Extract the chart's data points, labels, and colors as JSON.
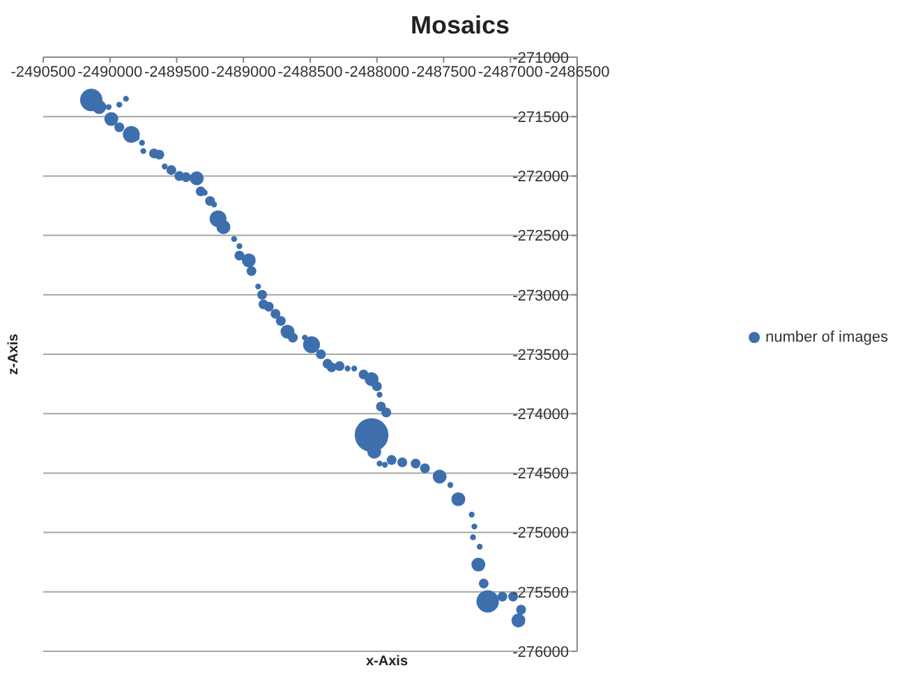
{
  "chart_data": {
    "type": "bubble",
    "title": "Mosaics",
    "xlabel": "x-Axis",
    "ylabel": "z-Axis",
    "xlim": [
      -2490500,
      -2486500
    ],
    "xticks": [
      -2490500,
      -2490000,
      -2489500,
      -2489000,
      -2488500,
      -2488000,
      -2487500,
      -2487000,
      -2486500
    ],
    "ylim": [
      -276000,
      -271000
    ],
    "yticks": [
      -276000,
      -275500,
      -275000,
      -274500,
      -274000,
      -273500,
      -273000,
      -272500,
      -272000,
      -271500,
      -271000
    ],
    "grid": "y",
    "legend": "right",
    "series": [
      {
        "name": "number of images",
        "color": "#3d6fad",
        "x": [
          -2490140,
          -2490080,
          -2490010,
          -2489930,
          -2489880,
          -2489990,
          -2489930,
          -2489840,
          -2489800,
          -2489760,
          -2489750,
          -2489670,
          -2489630,
          -2489590,
          -2489540,
          -2489480,
          -2489430,
          -2489350,
          -2489320,
          -2489290,
          -2489250,
          -2489220,
          -2489190,
          -2489150,
          -2489070,
          -2489030,
          -2489030,
          -2488960,
          -2488940,
          -2488890,
          -2488860,
          -2488850,
          -2488810,
          -2488760,
          -2488720,
          -2488670,
          -2488630,
          -2488540,
          -2488490,
          -2488420,
          -2488370,
          -2488340,
          -2488280,
          -2488220,
          -2488170,
          -2488100,
          -2488040,
          -2488000,
          -2487980,
          -2487970,
          -2487930,
          -2488040,
          -2488020,
          -2487980,
          -2487940,
          -2487890,
          -2487810,
          -2487710,
          -2487640,
          -2487530,
          -2487450,
          -2487390,
          -2487290,
          -2487270,
          -2487280,
          -2487230,
          -2487240,
          -2487200,
          -2487170,
          -2487060,
          -2486980,
          -2486920,
          -2486940
        ],
        "values": [
          -271360,
          -271420,
          -271420,
          -271400,
          -271350,
          -271520,
          -271590,
          -271650,
          -271680,
          -271720,
          -271790,
          -271810,
          -271820,
          -271920,
          -271950,
          -272000,
          -272010,
          -272020,
          -272130,
          -272140,
          -272210,
          -272240,
          -272360,
          -272430,
          -272530,
          -272590,
          -272670,
          -272710,
          -272800,
          -272930,
          -273000,
          -273080,
          -273100,
          -273160,
          -273220,
          -273310,
          -273360,
          -273360,
          -273420,
          -273500,
          -273580,
          -273610,
          -273600,
          -273620,
          -273620,
          -273670,
          -273710,
          -273770,
          -273840,
          -273940,
          -273990,
          -274180,
          -274320,
          -274420,
          -274430,
          -274390,
          -274410,
          -274420,
          -274460,
          -274530,
          -274600,
          -274720,
          -274850,
          -274950,
          -275040,
          -275120,
          -275270,
          -275430,
          -275580,
          -275540,
          -275540,
          -275650,
          -275740
        ],
        "sizes": [
          0.44,
          0.17,
          0.03,
          0.03,
          0.03,
          0.17,
          0.085,
          0.25,
          0.03,
          0.03,
          0.03,
          0.085,
          0.085,
          0.03,
          0.085,
          0.085,
          0.085,
          0.17,
          0.085,
          0.03,
          0.085,
          0.03,
          0.25,
          0.17,
          0.03,
          0.03,
          0.085,
          0.17,
          0.085,
          0.03,
          0.085,
          0.085,
          0.085,
          0.085,
          0.085,
          0.17,
          0.085,
          0.03,
          0.25,
          0.085,
          0.085,
          0.085,
          0.085,
          0.03,
          0.03,
          0.085,
          0.17,
          0.085,
          0.03,
          0.085,
          0.085,
          1,
          0.17,
          0.03,
          0.03,
          0.085,
          0.085,
          0.085,
          0.085,
          0.17,
          0.03,
          0.17,
          0.03,
          0.03,
          0.03,
          0.03,
          0.17,
          0.085,
          0.44,
          0.085,
          0.085,
          0.085,
          0.17
        ]
      }
    ]
  }
}
